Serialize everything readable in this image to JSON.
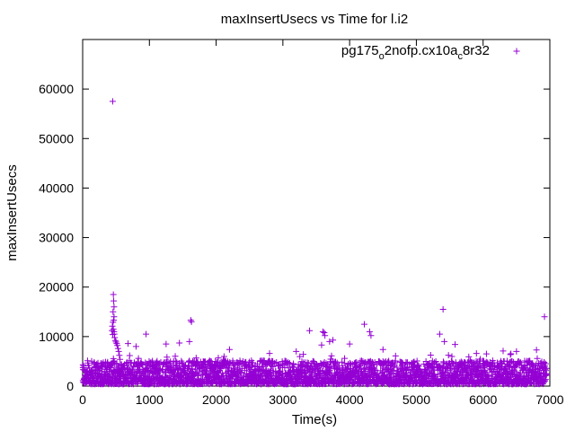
{
  "chart_data": {
    "type": "scatter",
    "title": "maxInsertUsecs vs Time for l.i2",
    "xlabel": "Time(s)",
    "ylabel": "maxInsertUsecs",
    "xlim": [
      0,
      7000
    ],
    "ylim": [
      0,
      70000
    ],
    "xticks": [
      0,
      1000,
      2000,
      3000,
      4000,
      5000,
      6000,
      7000
    ],
    "yticks": [
      0,
      10000,
      20000,
      30000,
      40000,
      50000,
      60000
    ],
    "grid": false,
    "legend_position": "top-right",
    "marker": "+",
    "series": [
      {
        "name": "pg175_o2nofp.cx10a_c8r32",
        "legend_parts": {
          "a": "pg175",
          "b": "o",
          "c": "2nofp.cx10a",
          "d": "c",
          "e": "8r32"
        },
        "color": "#9400d3",
        "outliers": [
          [
            450,
            57500
          ],
          [
            460,
            18500
          ],
          [
            465,
            17200
          ],
          [
            470,
            16000
          ],
          [
            455,
            15000
          ],
          [
            470,
            14000
          ],
          [
            1620,
            13300
          ],
          [
            1630,
            13000
          ],
          [
            4220,
            12500
          ],
          [
            5400,
            15500
          ],
          [
            6920,
            14000
          ],
          [
            3400,
            11200
          ],
          [
            3600,
            11000
          ],
          [
            3620,
            10800
          ],
          [
            3630,
            10200
          ],
          [
            3700,
            9000
          ],
          [
            3750,
            9300
          ],
          [
            4300,
            11000
          ],
          [
            4320,
            10200
          ],
          [
            4000,
            8500
          ],
          [
            3580,
            8300
          ],
          [
            5350,
            10500
          ],
          [
            5420,
            9000
          ],
          [
            5580,
            8400
          ],
          [
            6800,
            7300
          ],
          [
            950,
            10500
          ],
          [
            1250,
            8500
          ],
          [
            1450,
            8700
          ],
          [
            1600,
            9000
          ],
          [
            800,
            8000
          ],
          [
            680,
            8600
          ],
          [
            2200,
            7400
          ],
          [
            2800,
            6600
          ],
          [
            3200,
            7000
          ],
          [
            4500,
            7400
          ],
          [
            6300,
            7100
          ],
          [
            6500,
            7000
          ],
          [
            5900,
            6600
          ],
          [
            6050,
            6500
          ]
        ],
        "spike": [
          [
            440,
            11200
          ],
          [
            445,
            12100
          ],
          [
            450,
            10400
          ],
          [
            455,
            12900
          ],
          [
            460,
            11500
          ],
          [
            465,
            13300
          ],
          [
            470,
            11000
          ],
          [
            475,
            10500
          ],
          [
            480,
            9800
          ],
          [
            490,
            9200
          ],
          [
            500,
            8900
          ],
          [
            510,
            8600
          ],
          [
            520,
            8200
          ],
          [
            530,
            7600
          ],
          [
            540,
            7000
          ],
          [
            550,
            6200
          ],
          [
            560,
            5400
          ]
        ],
        "band": {
          "x_range": [
            0,
            6950
          ],
          "y_range": [
            400,
            6000
          ],
          "step": 7
        }
      }
    ]
  }
}
